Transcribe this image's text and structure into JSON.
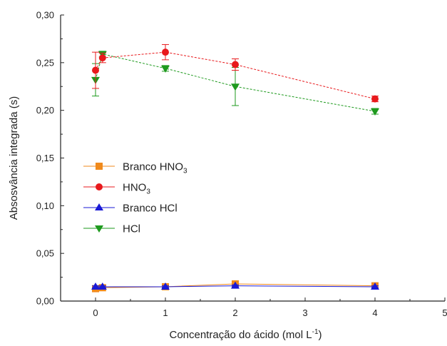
{
  "chart_data": {
    "type": "line",
    "xlabel": "Concentração do ácido (mol L",
    "xlabel_superscript": "-1",
    "xlabel_suffix": ")",
    "ylabel": "Absosvância integrada (s)",
    "xlim": [
      -0.5,
      5
    ],
    "ylim": [
      0,
      0.3
    ],
    "x_ticks": [
      "0",
      "1",
      "2",
      "3",
      "4",
      "5"
    ],
    "x_tick_values": [
      0,
      1,
      2,
      3,
      4,
      5
    ],
    "y_ticks": [
      "0,00",
      "0,05",
      "0,10",
      "0,15",
      "0,20",
      "0,25",
      "0,30"
    ],
    "y_tick_values": [
      0,
      0.05,
      0.1,
      0.15,
      0.2,
      0.25,
      0.3
    ],
    "grid": false,
    "legend_position": "middle-left",
    "series": [
      {
        "name": "Branco HNO",
        "name_subscript": "3",
        "marker": "square",
        "color": "#f08a1c",
        "x": [
          0,
          0.1,
          1,
          2,
          4
        ],
        "y": [
          0.013,
          0.014,
          0.015,
          0.018,
          0.016
        ],
        "err": [
          0.001,
          0.001,
          0.001,
          0.002,
          0.001
        ]
      },
      {
        "name": "HNO",
        "name_subscript": "3",
        "marker": "circle",
        "color": "#e8191c",
        "x": [
          0,
          0.1,
          1,
          2,
          4
        ],
        "y": [
          0.242,
          0.255,
          0.261,
          0.248,
          0.212
        ],
        "err": [
          0.019,
          0.005,
          0.008,
          0.006,
          0.003
        ]
      },
      {
        "name": "Branco HCl",
        "name_subscript": "",
        "marker": "triangle-up",
        "color": "#1a1ad6",
        "x": [
          0,
          0.1,
          1,
          2,
          4
        ],
        "y": [
          0.015,
          0.015,
          0.015,
          0.016,
          0.015
        ],
        "err": [
          0.001,
          0.001,
          0.001,
          0.001,
          0.001
        ]
      },
      {
        "name": "HCl",
        "name_subscript": "",
        "marker": "triangle-down",
        "color": "#1e9a1e",
        "x": [
          0,
          0.1,
          1,
          2,
          4
        ],
        "y": [
          0.232,
          0.259,
          0.244,
          0.225,
          0.199
        ],
        "err": [
          0.017,
          0.003,
          0.003,
          0.02,
          0.003
        ]
      }
    ]
  }
}
